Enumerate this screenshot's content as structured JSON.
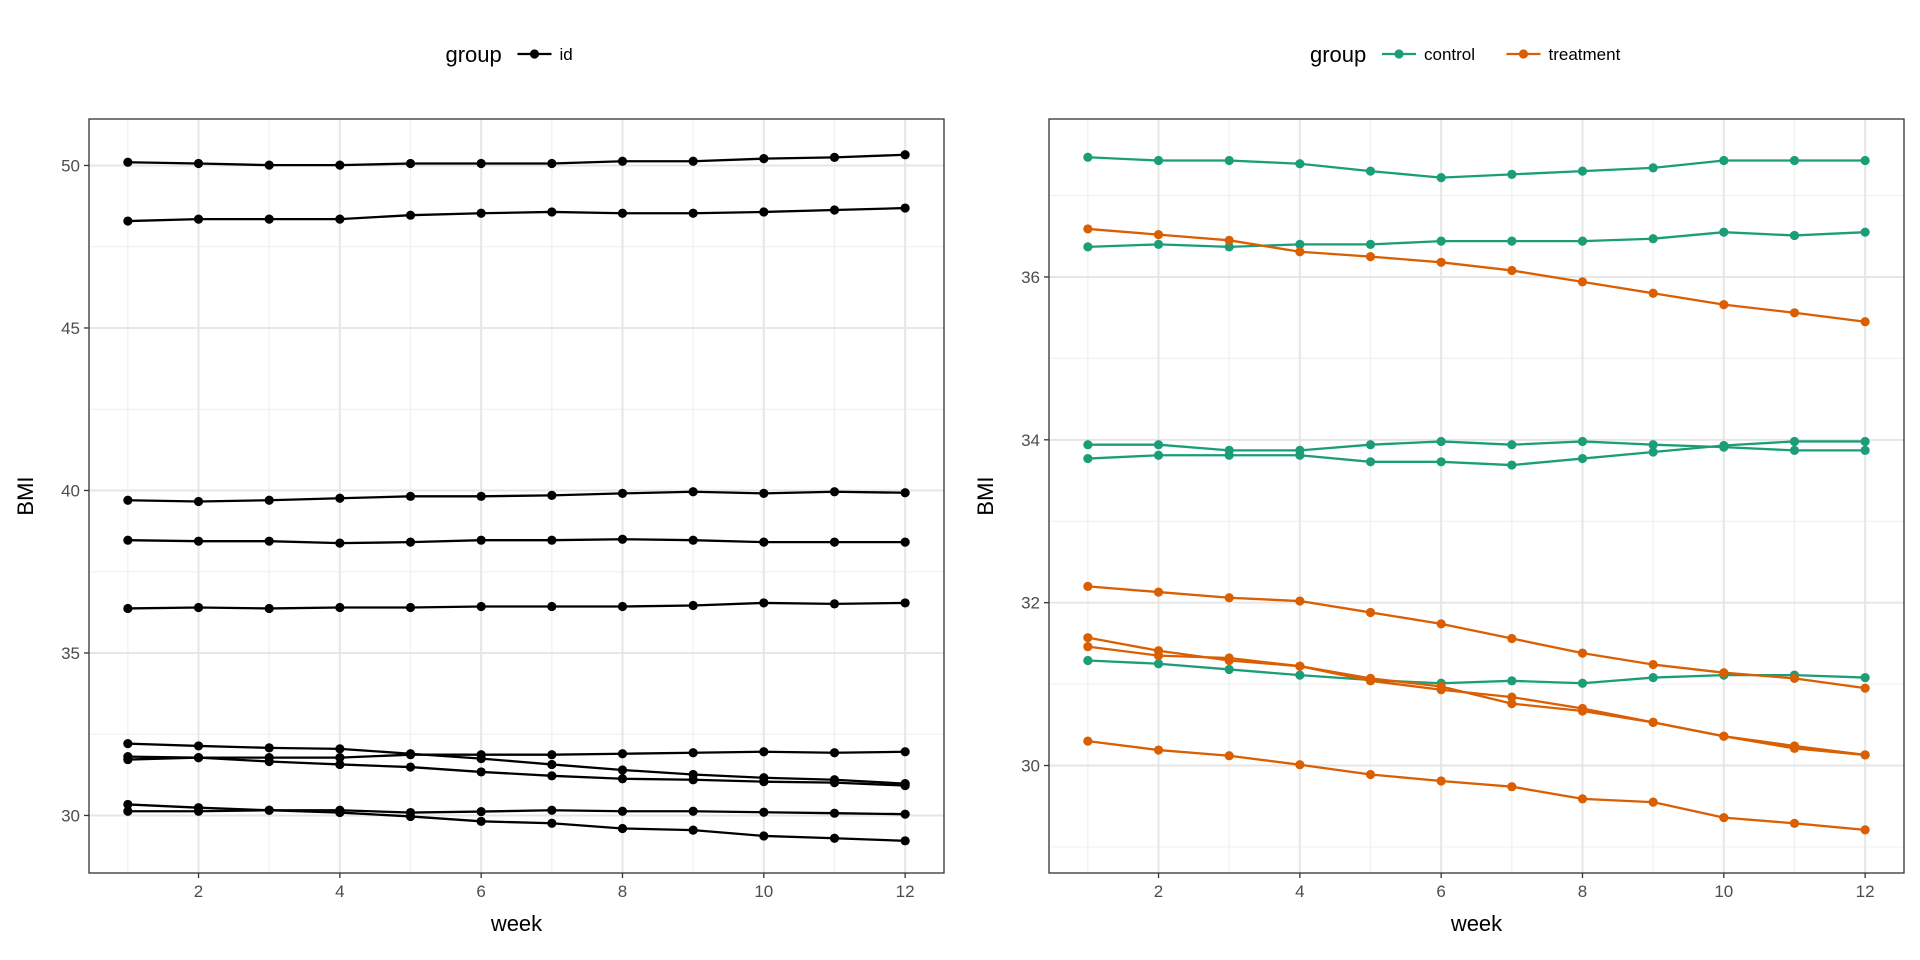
{
  "chart_data": [
    {
      "type": "line",
      "xlabel": "week",
      "ylabel": "BMI",
      "xlim": [
        0.45,
        12.55
      ],
      "ylim": [
        28.23,
        51.43
      ],
      "xticks": [
        2,
        4,
        6,
        8,
        10,
        12
      ],
      "yticks": [
        30,
        35,
        40,
        45,
        50
      ],
      "grid": true,
      "legend": {
        "title": "group",
        "position": "top",
        "entries": [
          {
            "label": "id",
            "color": "#000000"
          }
        ]
      },
      "x": [
        1,
        2,
        3,
        4,
        5,
        6,
        7,
        8,
        9,
        10,
        11,
        12
      ],
      "series": [
        {
          "name": "id",
          "color": "#000000",
          "values": [
            50.1,
            50.06,
            50.01,
            50.01,
            50.06,
            50.06,
            50.06,
            50.13,
            50.13,
            50.21,
            50.25,
            50.33
          ]
        },
        {
          "name": "id",
          "color": "#000000",
          "values": [
            48.29,
            48.35,
            48.35,
            48.35,
            48.47,
            48.53,
            48.57,
            48.53,
            48.53,
            48.57,
            48.63,
            48.69
          ]
        },
        {
          "name": "id",
          "color": "#000000",
          "values": [
            39.7,
            39.66,
            39.7,
            39.76,
            39.82,
            39.82,
            39.85,
            39.91,
            39.96,
            39.91,
            39.96,
            39.93
          ]
        },
        {
          "name": "id",
          "color": "#000000",
          "values": [
            38.47,
            38.44,
            38.44,
            38.38,
            38.41,
            38.47,
            38.47,
            38.5,
            38.47,
            38.41,
            38.41,
            38.41
          ]
        },
        {
          "name": "id",
          "color": "#000000",
          "values": [
            36.37,
            36.4,
            36.37,
            36.4,
            36.4,
            36.43,
            36.43,
            36.43,
            36.46,
            36.54,
            36.51,
            36.54
          ]
        },
        {
          "name": "id",
          "color": "#000000",
          "values": [
            32.21,
            32.14,
            32.08,
            32.05,
            31.9,
            31.75,
            31.57,
            31.4,
            31.26,
            31.16,
            31.1,
            30.98
          ]
        },
        {
          "name": "id",
          "color": "#000000",
          "values": [
            31.81,
            31.78,
            31.78,
            31.78,
            31.87,
            31.87,
            31.87,
            31.9,
            31.93,
            31.96,
            31.93,
            31.96
          ]
        },
        {
          "name": "id",
          "color": "#000000",
          "values": [
            31.72,
            31.78,
            31.66,
            31.57,
            31.49,
            31.34,
            31.22,
            31.13,
            31.1,
            31.04,
            31.01,
            30.92
          ]
        },
        {
          "name": "id",
          "color": "#000000",
          "values": [
            30.34,
            30.24,
            30.16,
            30.09,
            29.97,
            29.82,
            29.76,
            29.6,
            29.55,
            29.37,
            29.3,
            29.22
          ]
        },
        {
          "name": "id",
          "color": "#000000",
          "values": [
            30.13,
            30.13,
            30.16,
            30.16,
            30.09,
            30.12,
            30.16,
            30.13,
            30.13,
            30.1,
            30.07,
            30.04
          ]
        }
      ]
    },
    {
      "type": "line",
      "xlabel": "week",
      "ylabel": "BMI",
      "xlim": [
        0.45,
        12.55
      ],
      "ylim": [
        28.68,
        37.94
      ],
      "xticks": [
        2,
        4,
        6,
        8,
        10,
        12
      ],
      "yticks": [
        30,
        32,
        34,
        36
      ],
      "grid": true,
      "legend": {
        "title": "group",
        "position": "top",
        "entries": [
          {
            "label": "control",
            "color": "#1B9E77"
          },
          {
            "label": "treatment",
            "color": "#D95F02"
          }
        ]
      },
      "x": [
        1,
        2,
        3,
        4,
        5,
        6,
        7,
        8,
        9,
        10,
        11,
        12
      ],
      "series": [
        {
          "name": "control",
          "color": "#1B9E77",
          "values": [
            37.47,
            37.43,
            37.43,
            37.39,
            37.3,
            37.22,
            37.26,
            37.3,
            37.34,
            37.43,
            37.43,
            37.43
          ]
        },
        {
          "name": "control",
          "color": "#1B9E77",
          "values": [
            36.37,
            36.4,
            36.37,
            36.4,
            36.4,
            36.44,
            36.44,
            36.44,
            36.47,
            36.55,
            36.51,
            36.55
          ]
        },
        {
          "name": "control",
          "color": "#1B9E77",
          "values": [
            33.94,
            33.94,
            33.87,
            33.87,
            33.94,
            33.98,
            33.94,
            33.98,
            33.94,
            33.91,
            33.87,
            33.87
          ]
        },
        {
          "name": "control",
          "color": "#1B9E77",
          "values": [
            33.77,
            33.81,
            33.81,
            33.81,
            33.73,
            33.73,
            33.69,
            33.77,
            33.85,
            33.93,
            33.98,
            33.98
          ]
        },
        {
          "name": "control",
          "color": "#1B9E77",
          "values": [
            31.29,
            31.25,
            31.18,
            31.11,
            31.05,
            31.01,
            31.04,
            31.01,
            31.08,
            31.11,
            31.11,
            31.08
          ]
        },
        {
          "name": "treatment",
          "color": "#D95F02",
          "values": [
            36.59,
            36.52,
            36.45,
            36.31,
            36.25,
            36.18,
            36.08,
            35.94,
            35.8,
            35.66,
            35.56,
            35.45
          ]
        },
        {
          "name": "treatment",
          "color": "#D95F02",
          "values": [
            32.2,
            32.13,
            32.06,
            32.02,
            31.88,
            31.74,
            31.56,
            31.38,
            31.24,
            31.14,
            31.07,
            30.95
          ]
        },
        {
          "name": "treatment",
          "color": "#D95F02",
          "values": [
            31.57,
            31.41,
            31.29,
            31.22,
            31.04,
            30.93,
            30.84,
            30.7,
            30.53,
            30.36,
            30.24,
            30.13
          ]
        },
        {
          "name": "treatment",
          "color": "#D95F02",
          "values": [
            31.46,
            31.35,
            31.32,
            31.22,
            31.07,
            30.97,
            30.76,
            30.67,
            30.53,
            30.36,
            30.21,
            30.13
          ]
        },
        {
          "name": "treatment",
          "color": "#D95F02",
          "values": [
            30.3,
            30.19,
            30.12,
            30.01,
            29.89,
            29.81,
            29.74,
            29.59,
            29.55,
            29.36,
            29.29,
            29.21
          ]
        }
      ]
    }
  ]
}
